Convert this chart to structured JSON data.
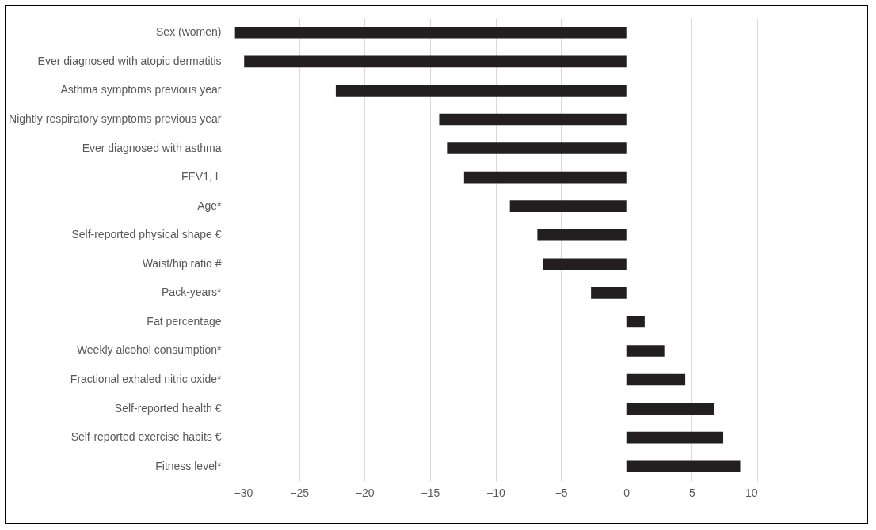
{
  "chart_data": {
    "type": "bar",
    "orientation": "horizontal",
    "categories": [
      "Sex (women)",
      "Ever diagnosed with atopic dermatitis",
      "Asthma symptoms previous year",
      "Nightly respiratory symptoms previous year",
      "Ever diagnosed with asthma",
      "FEV1, L",
      "Age*",
      "Self-reported physical shape €",
      "Waist/hip ratio #",
      "Pack-years*",
      "Fat percentage",
      "Weekly alcohol consumption*",
      "Fractional exhaled nitric oxide*",
      "Self-reported health €",
      "Self-reported exercise habits €",
      "Fitness level*"
    ],
    "values": [
      -29.9,
      -29.2,
      -22.2,
      -14.3,
      -13.7,
      -12.4,
      -8.9,
      -6.8,
      -6.4,
      -2.7,
      1.4,
      2.9,
      4.5,
      6.7,
      7.4,
      8.7
    ],
    "color": "#231f20",
    "xlim": [
      -30,
      10
    ],
    "xticks": [
      -30,
      -25,
      -20,
      -15,
      -10,
      -5,
      0,
      5,
      10
    ],
    "grid": "x"
  }
}
